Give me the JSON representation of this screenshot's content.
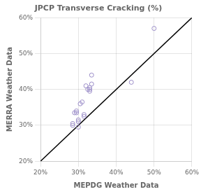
{
  "chart_data": {
    "type": "scatter",
    "title": "JPCP Transverse Cracking (%)",
    "xlabel": "MEPDG Weather Data",
    "ylabel": "MERRA Weather Data",
    "xlim": [
      0.2,
      0.6
    ],
    "ylim": [
      0.2,
      0.6
    ],
    "xticks": [
      {
        "value": 0.2,
        "label": "20%"
      },
      {
        "value": 0.3,
        "label": "30%"
      },
      {
        "value": 0.4,
        "label": "40%"
      },
      {
        "value": 0.5,
        "label": "50%"
      },
      {
        "value": 0.6,
        "label": "60%"
      }
    ],
    "yticks": [
      {
        "value": 0.2,
        "label": "20%"
      },
      {
        "value": 0.3,
        "label": "30%"
      },
      {
        "value": 0.4,
        "label": "40%"
      },
      {
        "value": 0.5,
        "label": "50%"
      },
      {
        "value": 0.6,
        "label": "60%"
      }
    ],
    "grid": true,
    "series": [
      {
        "type": "line",
        "color": "#000000",
        "line_style": "solid",
        "x": [
          0.2,
          0.6
        ],
        "values": [
          0.2,
          0.6
        ]
      },
      {
        "type": "scatter",
        "color": "#9b8dc8",
        "marker": "circle",
        "x": [
          0.285,
          0.285,
          0.29,
          0.295,
          0.295,
          0.3,
          0.3,
          0.3,
          0.305,
          0.31,
          0.315,
          0.315,
          0.32,
          0.325,
          0.33,
          0.33,
          0.33,
          0.335,
          0.335,
          0.44,
          0.5
        ],
        "values": [
          0.3,
          0.305,
          0.335,
          0.335,
          0.34,
          0.295,
          0.31,
          0.315,
          0.36,
          0.365,
          0.325,
          0.33,
          0.41,
          0.4,
          0.395,
          0.4,
          0.405,
          0.415,
          0.44,
          0.42,
          0.57
        ]
      }
    ]
  }
}
